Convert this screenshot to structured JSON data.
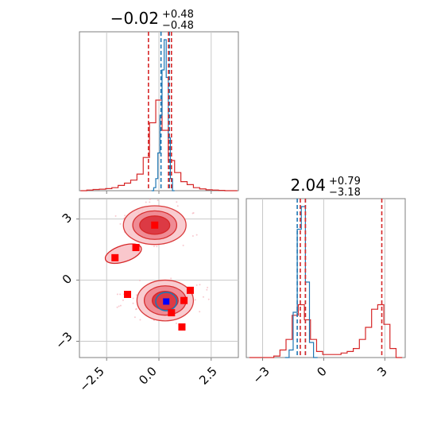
{
  "chart_data": [
    {
      "panel": "marginal-x",
      "type": "histogram",
      "title": {
        "main": "−0.02",
        "upper": "+0.48",
        "lower": "−0.48"
      },
      "xlim": [
        -3.8,
        3.8
      ],
      "grid": true,
      "colors": {
        "posterior": "#d62728",
        "reference": "#1f77b4"
      },
      "red_series_x": [
        -3.6,
        -3.3,
        -3.0,
        -2.7,
        -2.4,
        -2.1,
        -1.8,
        -1.5,
        -1.2,
        -0.9,
        -0.6,
        -0.3,
        0.0,
        0.3,
        0.6,
        0.9,
        1.2,
        1.5,
        1.8,
        2.1,
        2.4,
        2.7,
        3.0,
        3.3,
        3.6
      ],
      "red_series_y": [
        0.0,
        0.004,
        0.008,
        0.01,
        0.014,
        0.02,
        0.035,
        0.05,
        0.07,
        0.11,
        0.22,
        0.45,
        0.6,
        0.4,
        0.2,
        0.12,
        0.06,
        0.04,
        0.02,
        0.012,
        0.006,
        0.004,
        0.002,
        0.0,
        0.0
      ],
      "blue_series_x": [
        -0.3,
        -0.2,
        -0.1,
        0.0,
        0.1,
        0.2,
        0.3,
        0.4,
        0.5,
        0.6,
        0.7
      ],
      "blue_series_y": [
        0.0,
        0.02,
        0.08,
        0.25,
        0.5,
        0.8,
        1.0,
        0.75,
        0.35,
        0.08,
        0.0
      ],
      "vlines_red": [
        -0.5,
        0.46,
        0.6
      ],
      "vlines_blue": [
        0.1,
        0.5
      ]
    },
    {
      "panel": "joint",
      "type": "contour",
      "xlim": [
        -3.8,
        3.8
      ],
      "ylim": [
        -3.8,
        4.0
      ],
      "xticks": [
        "−2.5",
        "0.0",
        "2.5"
      ],
      "yticks": [
        "3",
        "0",
        "−3"
      ],
      "grid": true,
      "modes": [
        {
          "cx": -0.2,
          "cy": 2.7,
          "note": "upper mode"
        },
        {
          "cx": 0.3,
          "cy": -1.0,
          "note": "lower mode"
        }
      ],
      "red_markers": [
        {
          "x": -0.2,
          "y": 2.7
        },
        {
          "x": -1.1,
          "y": 1.6
        },
        {
          "x": -2.1,
          "y": 1.1
        },
        {
          "x": -1.5,
          "y": -0.7
        },
        {
          "x": 1.5,
          "y": -0.5
        },
        {
          "x": 1.2,
          "y": -1.0
        },
        {
          "x": 0.6,
          "y": -1.6
        },
        {
          "x": 1.1,
          "y": -2.3
        }
      ],
      "blue_marker": {
        "x": 0.35,
        "y": -1.05
      }
    },
    {
      "panel": "marginal-y",
      "type": "histogram",
      "title": {
        "main": "2.04",
        "upper": "+0.79",
        "lower": "−3.18"
      },
      "xlim": [
        -3.8,
        4.0
      ],
      "xticks": [
        "−3",
        "0",
        "3"
      ],
      "grid": true,
      "red_series_x": [
        -3.5,
        -3.2,
        -2.9,
        -2.6,
        -2.3,
        -2.0,
        -1.7,
        -1.4,
        -1.1,
        -0.8,
        -0.5,
        -0.2,
        0.1,
        0.4,
        0.7,
        1.0,
        1.3,
        1.6,
        1.9,
        2.2,
        2.5,
        2.8,
        3.1,
        3.4,
        3.7
      ],
      "red_series_y": [
        0.0,
        0.0,
        0.0,
        0.0,
        0.01,
        0.05,
        0.12,
        0.28,
        0.35,
        0.25,
        0.12,
        0.04,
        0.02,
        0.02,
        0.02,
        0.03,
        0.04,
        0.06,
        0.12,
        0.2,
        0.32,
        0.35,
        0.22,
        0.06,
        0.0
      ],
      "blue_series_x": [
        -1.8,
        -1.6,
        -1.4,
        -1.2,
        -1.0,
        -0.8,
        -0.6,
        -0.4
      ],
      "blue_series_y": [
        0.0,
        0.05,
        0.3,
        0.85,
        1.0,
        0.5,
        0.1,
        0.0
      ],
      "vlines_red": [
        -1.15,
        -0.9,
        2.85
      ],
      "vlines_blue": [
        -1.3,
        -0.9
      ]
    }
  ]
}
